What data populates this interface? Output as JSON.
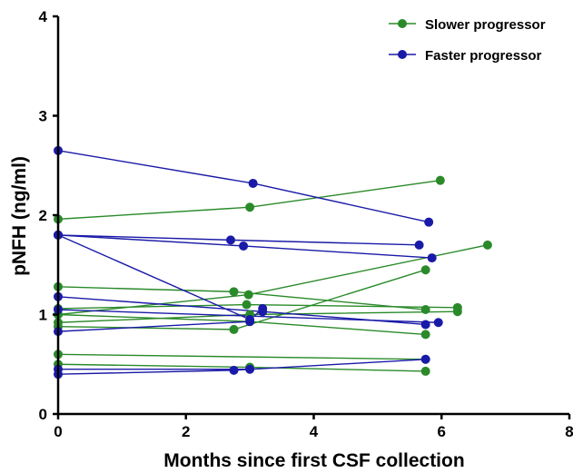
{
  "chart_data": {
    "type": "line",
    "xlabel": "Months since first CSF collection",
    "ylabel": "pNFH (ng/ml)",
    "xlim": [
      0,
      8
    ],
    "ylim": [
      0,
      4
    ],
    "xticks": [
      "0",
      "2",
      "4",
      "6",
      "8"
    ],
    "yticks": [
      "0",
      "1",
      "2",
      "3",
      "4"
    ],
    "grid": false,
    "legend_position": "top-right",
    "legend": [
      {
        "label": "Slower progressor",
        "color": "#2a8a2a"
      },
      {
        "label": "Faster progressor",
        "color": "#1a1aa8"
      }
    ],
    "series": [
      {
        "group": "Slower progressor",
        "color": "#2a8a2a",
        "points": [
          [
            0,
            1.96
          ],
          [
            3.0,
            2.08
          ],
          [
            5.98,
            2.35
          ]
        ]
      },
      {
        "group": "Slower progressor",
        "color": "#2a8a2a",
        "points": [
          [
            0,
            1.28
          ],
          [
            2.75,
            1.23
          ],
          [
            5.75,
            1.05
          ]
        ]
      },
      {
        "group": "Slower progressor",
        "color": "#2a8a2a",
        "points": [
          [
            0,
            1.0
          ],
          [
            2.98,
            1.2
          ],
          [
            6.72,
            1.7
          ]
        ]
      },
      {
        "group": "Slower progressor",
        "color": "#2a8a2a",
        "points": [
          [
            0,
            1.06
          ],
          [
            2.95,
            1.1
          ],
          [
            6.25,
            1.07
          ]
        ]
      },
      {
        "group": "Slower progressor",
        "color": "#2a8a2a",
        "points": [
          [
            0,
            0.92
          ],
          [
            3.0,
            1.0
          ],
          [
            6.25,
            1.03
          ]
        ]
      },
      {
        "group": "Slower progressor",
        "color": "#2a8a2a",
        "points": [
          [
            0,
            0.88
          ],
          [
            2.75,
            0.85
          ],
          [
            5.75,
            1.45
          ]
        ]
      },
      {
        "group": "Slower progressor",
        "color": "#2a8a2a",
        "points": [
          [
            0,
            1.0
          ],
          [
            3.0,
            0.93
          ],
          [
            5.75,
            0.8
          ]
        ]
      },
      {
        "group": "Slower progressor",
        "color": "#2a8a2a",
        "points": [
          [
            0,
            0.6
          ],
          [
            5.75,
            0.55
          ]
        ]
      },
      {
        "group": "Slower progressor",
        "color": "#2a8a2a",
        "points": [
          [
            0,
            0.5
          ],
          [
            3.0,
            0.47
          ],
          [
            5.75,
            0.43
          ]
        ]
      },
      {
        "group": "Faster progressor",
        "color": "#1a1aa8",
        "points": [
          [
            0,
            2.65
          ],
          [
            3.05,
            2.32
          ],
          [
            5.8,
            1.93
          ]
        ]
      },
      {
        "group": "Faster progressor",
        "color": "#1a1aa8",
        "points": [
          [
            0,
            1.8
          ],
          [
            2.7,
            1.75
          ],
          [
            5.65,
            1.7
          ]
        ]
      },
      {
        "group": "Faster progressor",
        "color": "#1a1aa8",
        "points": [
          [
            0,
            1.8
          ],
          [
            2.9,
            1.69
          ],
          [
            5.85,
            1.57
          ]
        ]
      },
      {
        "group": "Faster progressor",
        "color": "#1a1aa8",
        "points": [
          [
            0,
            1.8
          ],
          [
            3.0,
            0.95
          ],
          [
            3.2,
            1.06
          ]
        ]
      },
      {
        "group": "Faster progressor",
        "color": "#1a1aa8",
        "points": [
          [
            0,
            1.18
          ],
          [
            3.2,
            1.03
          ],
          [
            5.75,
            0.9
          ]
        ]
      },
      {
        "group": "Faster progressor",
        "color": "#1a1aa8",
        "points": [
          [
            0,
            1.05
          ],
          [
            5.95,
            0.92
          ]
        ]
      },
      {
        "group": "Faster progressor",
        "color": "#1a1aa8",
        "points": [
          [
            0,
            0.83
          ],
          [
            3.0,
            0.93
          ]
        ]
      },
      {
        "group": "Faster progressor",
        "color": "#1a1aa8",
        "points": [
          [
            0,
            0.4
          ],
          [
            2.75,
            0.44
          ],
          [
            5.75,
            0.55
          ]
        ]
      },
      {
        "group": "Faster progressor",
        "color": "#1a1aa8",
        "points": [
          [
            0,
            0.45
          ],
          [
            3.0,
            0.45
          ]
        ]
      }
    ]
  }
}
